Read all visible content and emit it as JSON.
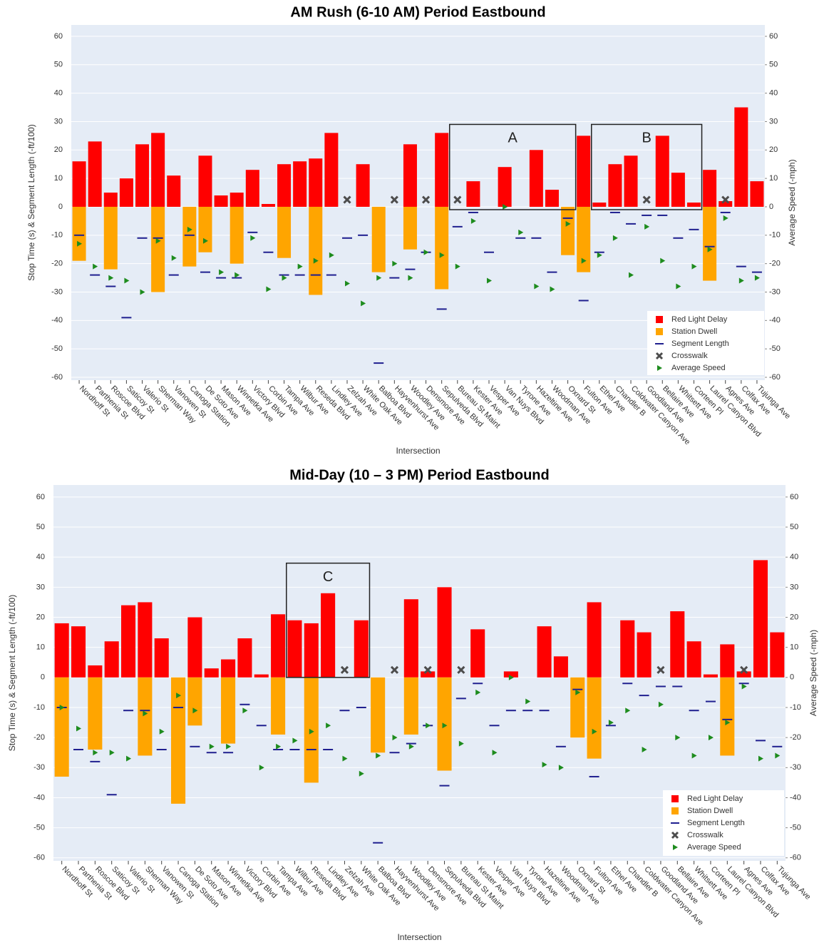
{
  "chart_data": [
    {
      "type": "bar",
      "title": "AM Rush (6-10 AM) Period Eastbound",
      "xlabel": "Intersection",
      "ylabel": "Stop Time (s) & Segment Length (-ft/100)",
      "y2label": "Average Speed (-mph)",
      "categories": [
        "Nordhoff St",
        "Parthenia St",
        "Roscoe Blvd",
        "Saticoy St",
        "Valerio St",
        "Sherman Way",
        "Vanowen St",
        "Canoga Station",
        "De Soto Ave",
        "Mason Ave",
        "Winnetka Ave",
        "Victory Blvd",
        "Corbin Ave",
        "Tampa Ave",
        "Wilbur Ave",
        "Reseda Blvd",
        "Lindley Ave",
        "Zelzah Ave",
        "White Oak Ave",
        "Balboa Blvd",
        "Hayvenhurst Ave",
        "Woodley Ave",
        "Densmore Ave",
        "Sepulveda Blvd",
        "Bureau St Maint",
        "Kester Ave",
        "Vesper Ave",
        "Van Nuys Blvd",
        "Tyrone Ave",
        "Hazeltine Ave",
        "Woodman Ave",
        "Oxnard St",
        "Fulton Ave",
        "Ethel Ave",
        "Chandler B",
        "Coldwater Canyon Ave",
        "Goodland Ave",
        "Bellaire Ave",
        "Whitsett Ave",
        "Corteen Pl",
        "Laurel Canyon Blvd",
        "Agnes Ave",
        "Colfax Ave",
        "Tujunga Ave"
      ],
      "series": [
        {
          "name": "Red Light Delay",
          "marker": "bar",
          "color": "#ff0000",
          "values": [
            16,
            23,
            5,
            10,
            22,
            26,
            11,
            null,
            18,
            4,
            5,
            13,
            1,
            15,
            16,
            17,
            26,
            null,
            15,
            null,
            null,
            22,
            null,
            26,
            null,
            9,
            null,
            14,
            null,
            20,
            6,
            null,
            25,
            1.5,
            15,
            18,
            null,
            25,
            12,
            1.5,
            13,
            2,
            35,
            9
          ]
        },
        {
          "name": "Station Dwell",
          "marker": "bar",
          "color": "#ffa500",
          "values": [
            -19,
            null,
            -22,
            null,
            null,
            -30,
            null,
            -21,
            -16,
            null,
            -20,
            null,
            null,
            -18,
            null,
            -31,
            null,
            null,
            null,
            -23,
            null,
            -15,
            null,
            -29,
            null,
            null,
            null,
            null,
            null,
            null,
            null,
            -17,
            -23,
            null,
            null,
            null,
            null,
            null,
            null,
            null,
            -26,
            null,
            null,
            null
          ]
        },
        {
          "name": "Segment Length",
          "marker": "dash",
          "color": "#1f1f8f",
          "values": [
            -10,
            -24,
            -28,
            -39,
            -11,
            -11,
            -24,
            -10,
            -23,
            -25,
            -25,
            -9,
            -16,
            -24,
            -24,
            -24,
            -24,
            -11,
            -10,
            -55,
            -25,
            -22,
            -16,
            -36,
            -7,
            -2,
            -16,
            null,
            -11,
            -11,
            -23,
            -4,
            -33,
            -16,
            -2,
            -6,
            -3,
            -3,
            -11,
            -8,
            -14,
            -2,
            -21,
            -23
          ]
        },
        {
          "name": "Crosswalk",
          "marker": "x",
          "color": "#4d4d4d",
          "values": [
            null,
            null,
            null,
            null,
            null,
            null,
            null,
            null,
            null,
            null,
            null,
            null,
            null,
            null,
            null,
            null,
            null,
            2.5,
            null,
            null,
            2.5,
            null,
            2.5,
            null,
            2.5,
            null,
            null,
            null,
            null,
            null,
            null,
            null,
            null,
            null,
            null,
            null,
            2.5,
            null,
            null,
            null,
            null,
            2.5,
            null,
            null
          ]
        },
        {
          "name": "Average Speed",
          "marker": "triangle",
          "color": "#1e8c1e",
          "axis": "y2",
          "values": [
            -13,
            -21,
            -25,
            -26,
            -30,
            -12,
            -18,
            -8,
            -12,
            -23,
            -24,
            -11,
            -29,
            -25,
            -21,
            -19,
            -17,
            -27,
            -34,
            -25,
            -20,
            -25,
            -16,
            -17,
            -21,
            -5,
            -26,
            0,
            -9,
            -28,
            -29,
            -6,
            -19,
            -17,
            -11,
            -24,
            -7,
            -19,
            -28,
            -21,
            -15,
            -4,
            -26,
            -25
          ]
        }
      ],
      "ylim": [
        -61,
        64
      ],
      "yticks": [
        -60,
        -50,
        -40,
        -30,
        -20,
        -10,
        0,
        10,
        20,
        30,
        40,
        50,
        60
      ],
      "y2lim": [
        -61,
        64
      ],
      "y2ticks": [
        -60,
        -50,
        -40,
        -30,
        -20,
        -10,
        0,
        10,
        20,
        30,
        40,
        50,
        60
      ],
      "grid": true,
      "legend": "lower right",
      "annotations": [
        {
          "text": "A",
          "x": [
            "Bureau St Maint",
            "Oxnard St"
          ],
          "y": [
            -1,
            29
          ]
        },
        {
          "text": "B",
          "x": [
            "Ethel Ave",
            "Corteen Pl"
          ],
          "y": [
            -1,
            29
          ]
        }
      ]
    },
    {
      "type": "bar",
      "title": "Mid-Day (10 – 3 PM) Period Eastbound",
      "xlabel": "Intersection",
      "ylabel": "Stop Time (s) & Segment Length (-ft/100)",
      "y2label": "Average Speed (-mph)",
      "categories": [
        "Nordhoff St",
        "Parthenia St",
        "Roscoe Blvd",
        "Saticoy St",
        "Valerio St",
        "Sherman Way",
        "Vanowen St",
        "Canoga Station",
        "De Soto Ave",
        "Mason Ave",
        "Winnetka Ave",
        "Victory Blvd",
        "Corbin Ave",
        "Tampa Ave",
        "Wilbur Ave",
        "Reseda Blvd",
        "Lindley Ave",
        "Zelzah Ave",
        "White Oak Ave",
        "Balboa Blvd",
        "Hayvenhurst Ave",
        "Woodley Ave",
        "Densmore Ave",
        "Sepulveda Blvd",
        "Bureau St Maint",
        "Kester Ave",
        "Vesper Ave",
        "Van Nuys Blvd",
        "Tyrone Ave",
        "Hazeltine Ave",
        "Woodman Ave",
        "Oxnard St",
        "Fulton Ave",
        "Ethel Ave",
        "Chandler B",
        "Coldwater Canyon Ave",
        "Goodland Ave",
        "Bellaire Ave",
        "Whitsett Ave",
        "Corteen Pl",
        "Laurel Canyon Blvd",
        "Agnes Ave",
        "Colfax Ave",
        "Tujunga Ave"
      ],
      "series": [
        {
          "name": "Red Light Delay",
          "marker": "bar",
          "color": "#ff0000",
          "values": [
            18,
            17,
            4,
            12,
            24,
            25,
            13,
            null,
            20,
            3,
            6,
            13,
            1,
            21,
            19,
            18,
            28,
            null,
            19,
            null,
            null,
            26,
            2,
            30,
            null,
            16,
            null,
            2,
            null,
            17,
            7,
            null,
            25,
            null,
            19,
            15,
            null,
            22,
            12,
            1,
            11,
            2,
            39,
            15
          ]
        },
        {
          "name": "Station Dwell",
          "marker": "bar",
          "color": "#ffa500",
          "values": [
            -33,
            null,
            -24,
            null,
            null,
            -26,
            null,
            -42,
            -16,
            null,
            -22,
            null,
            null,
            -19,
            null,
            -35,
            null,
            null,
            null,
            -25,
            null,
            -19,
            null,
            -31,
            null,
            null,
            null,
            null,
            null,
            null,
            null,
            -20,
            -27,
            null,
            null,
            null,
            null,
            null,
            null,
            null,
            -26,
            null,
            null,
            null
          ]
        },
        {
          "name": "Segment Length",
          "marker": "dash",
          "color": "#1f1f8f",
          "values": [
            -10,
            -24,
            -28,
            -39,
            -11,
            -11,
            -24,
            -10,
            -23,
            -25,
            -25,
            -9,
            -16,
            -24,
            -24,
            -24,
            -24,
            -11,
            -10,
            -55,
            -25,
            -22,
            -16,
            -36,
            -7,
            -2,
            -16,
            -11,
            -11,
            -11,
            -23,
            -4,
            -33,
            -16,
            -2,
            -6,
            -3,
            -3,
            -11,
            -8,
            -14,
            -2,
            -21,
            -23
          ]
        },
        {
          "name": "Crosswalk",
          "marker": "x",
          "color": "#4d4d4d",
          "values": [
            null,
            null,
            null,
            null,
            null,
            null,
            null,
            null,
            null,
            null,
            null,
            null,
            null,
            null,
            null,
            null,
            null,
            2.5,
            null,
            null,
            2.5,
            null,
            2.5,
            null,
            2.5,
            null,
            null,
            null,
            null,
            null,
            null,
            null,
            null,
            null,
            null,
            null,
            2.5,
            null,
            null,
            null,
            null,
            2.5,
            null,
            null
          ]
        },
        {
          "name": "Average Speed",
          "marker": "triangle",
          "color": "#1e8c1e",
          "axis": "y2",
          "values": [
            -10,
            -17,
            -25,
            -25,
            -27,
            -12,
            -18,
            -6,
            -11,
            -23,
            -23,
            -11,
            -30,
            -23,
            -21,
            -18,
            -16,
            -27,
            -32,
            -26,
            -20,
            -23,
            -16,
            -16,
            -22,
            -5,
            -25,
            0,
            -8,
            -29,
            -30,
            -5,
            -18,
            -15,
            -11,
            -24,
            -9,
            -20,
            -26,
            -20,
            -15,
            -3,
            -27,
            -26
          ]
        }
      ],
      "ylim": [
        -61,
        64
      ],
      "yticks": [
        -60,
        -50,
        -40,
        -30,
        -20,
        -10,
        0,
        10,
        20,
        30,
        40,
        50,
        60
      ],
      "y2lim": [
        -61,
        64
      ],
      "y2ticks": [
        -60,
        -50,
        -40,
        -30,
        -20,
        -10,
        0,
        10,
        20,
        30,
        40,
        50,
        60
      ],
      "grid": true,
      "legend": "lower right",
      "annotations": [
        {
          "text": "C",
          "x": [
            "Wilbur Ave",
            "White Oak Ave"
          ],
          "y": [
            0,
            38
          ]
        }
      ]
    }
  ]
}
